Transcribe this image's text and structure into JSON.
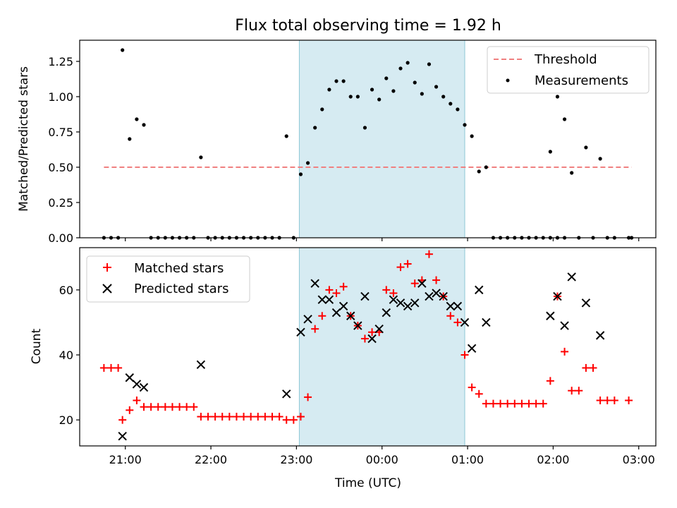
{
  "chart_data": [
    {
      "type": "scatter",
      "title": "Flux total observing time = 1.92 h",
      "xlabel": "",
      "ylabel": "Matched/Predicted stars",
      "xlim": [
        "20:28",
        "03:12"
      ],
      "ylim": [
        0,
        1.4
      ],
      "yticks": [
        0,
        0.25,
        0.5,
        0.75,
        1.0,
        1.25
      ],
      "ytick_labels": [
        "0.00",
        "0.25",
        "0.50",
        "0.75",
        "1.00",
        "1.25"
      ],
      "shaded_interval": [
        "23:02",
        "00:58"
      ],
      "legend_position": "top-right",
      "threshold": {
        "name": "Threshold",
        "x_range": [
          "20:45",
          "02:55"
        ],
        "y": 0.5,
        "color": "#f08080"
      },
      "series": [
        {
          "name": "Measurements",
          "marker": "dot",
          "color": "#000000",
          "points": [
            [
              "20:45",
              0
            ],
            [
              "20:50",
              0
            ],
            [
              "20:55",
              0
            ],
            [
              "20:58",
              1.33
            ],
            [
              "21:03",
              0.7
            ],
            [
              "21:08",
              0.84
            ],
            [
              "21:13",
              0.8
            ],
            [
              "21:18",
              0
            ],
            [
              "21:23",
              0
            ],
            [
              "21:28",
              0
            ],
            [
              "21:33",
              0
            ],
            [
              "21:38",
              0
            ],
            [
              "21:43",
              0
            ],
            [
              "21:48",
              0
            ],
            [
              "21:53",
              0.57
            ],
            [
              "21:58",
              0
            ],
            [
              "22:03",
              0
            ],
            [
              "22:08",
              0
            ],
            [
              "22:13",
              0
            ],
            [
              "22:18",
              0
            ],
            [
              "22:23",
              0
            ],
            [
              "22:28",
              0
            ],
            [
              "22:33",
              0
            ],
            [
              "22:38",
              0
            ],
            [
              "22:43",
              0
            ],
            [
              "22:48",
              0
            ],
            [
              "22:53",
              0.72
            ],
            [
              "22:58",
              0
            ],
            [
              "23:03",
              0.45
            ],
            [
              "23:08",
              0.53
            ],
            [
              "23:13",
              0.78
            ],
            [
              "23:18",
              0.91
            ],
            [
              "23:23",
              1.05
            ],
            [
              "23:28",
              1.11
            ],
            [
              "23:33",
              1.11
            ],
            [
              "23:38",
              1.0
            ],
            [
              "23:43",
              1.0
            ],
            [
              "23:48",
              0.78
            ],
            [
              "23:53",
              1.05
            ],
            [
              "23:58",
              0.98
            ],
            [
              "00:03",
              1.13
            ],
            [
              "00:08",
              1.04
            ],
            [
              "00:13",
              1.2
            ],
            [
              "00:18",
              1.24
            ],
            [
              "00:23",
              1.1
            ],
            [
              "00:28",
              1.02
            ],
            [
              "00:33",
              1.23
            ],
            [
              "00:38",
              1.07
            ],
            [
              "00:43",
              1.0
            ],
            [
              "00:48",
              0.95
            ],
            [
              "00:53",
              0.91
            ],
            [
              "00:58",
              0.8
            ],
            [
              "01:03",
              0.72
            ],
            [
              "01:08",
              0.47
            ],
            [
              "01:13",
              0.5
            ],
            [
              "01:18",
              0
            ],
            [
              "01:23",
              0
            ],
            [
              "01:28",
              0
            ],
            [
              "01:33",
              0
            ],
            [
              "01:38",
              0
            ],
            [
              "01:43",
              0
            ],
            [
              "01:48",
              0
            ],
            [
              "01:53",
              0
            ],
            [
              "01:58",
              0
            ],
            [
              "02:03",
              0
            ],
            [
              "02:08",
              0
            ],
            [
              "01:58",
              0.61
            ],
            [
              "02:03",
              1.0
            ],
            [
              "02:08",
              0.84
            ],
            [
              "02:13",
              0.46
            ],
            [
              "02:18",
              0
            ],
            [
              "02:23",
              0.64
            ],
            [
              "02:28",
              0
            ],
            [
              "02:33",
              0.56
            ],
            [
              "02:38",
              0
            ],
            [
              "02:43",
              0
            ],
            [
              "02:53",
              0
            ],
            [
              "02:55",
              0
            ]
          ]
        }
      ]
    },
    {
      "type": "scatter",
      "title": "",
      "xlabel": "Time (UTC)",
      "ylabel": "Count",
      "xlim": [
        "20:28",
        "03:12"
      ],
      "ylim": [
        12,
        73
      ],
      "yticks": [
        20,
        40,
        60
      ],
      "ytick_labels": [
        "20",
        "40",
        "60"
      ],
      "xticks": [
        "21:00",
        "22:00",
        "23:00",
        "00:00",
        "01:00",
        "02:00",
        "03:00"
      ],
      "xtick_labels": [
        "21:00",
        "22:00",
        "23:00",
        "00:00",
        "01:00",
        "02:00",
        "03:00"
      ],
      "shaded_interval": [
        "23:02",
        "00:58"
      ],
      "legend_position": "top-left",
      "series": [
        {
          "name": "Matched stars",
          "marker": "plus",
          "color": "#ff0000",
          "points": [
            [
              "20:45",
              36
            ],
            [
              "20:50",
              36
            ],
            [
              "20:55",
              36
            ],
            [
              "20:58",
              20
            ],
            [
              "21:03",
              23
            ],
            [
              "21:08",
              26
            ],
            [
              "21:13",
              24
            ],
            [
              "21:18",
              24
            ],
            [
              "21:23",
              24
            ],
            [
              "21:28",
              24
            ],
            [
              "21:33",
              24
            ],
            [
              "21:38",
              24
            ],
            [
              "21:43",
              24
            ],
            [
              "21:48",
              24
            ],
            [
              "21:53",
              21
            ],
            [
              "21:58",
              21
            ],
            [
              "22:03",
              21
            ],
            [
              "22:08",
              21
            ],
            [
              "22:13",
              21
            ],
            [
              "22:18",
              21
            ],
            [
              "22:23",
              21
            ],
            [
              "22:28",
              21
            ],
            [
              "22:33",
              21
            ],
            [
              "22:38",
              21
            ],
            [
              "22:43",
              21
            ],
            [
              "22:48",
              21
            ],
            [
              "22:53",
              20
            ],
            [
              "22:58",
              20
            ],
            [
              "23:03",
              21
            ],
            [
              "23:08",
              27
            ],
            [
              "23:13",
              48
            ],
            [
              "23:18",
              52
            ],
            [
              "23:23",
              60
            ],
            [
              "23:28",
              59
            ],
            [
              "23:33",
              61
            ],
            [
              "23:38",
              52
            ],
            [
              "23:43",
              49
            ],
            [
              "23:48",
              45
            ],
            [
              "23:53",
              47
            ],
            [
              "23:58",
              47
            ],
            [
              "00:03",
              60
            ],
            [
              "00:08",
              59
            ],
            [
              "00:13",
              67
            ],
            [
              "00:18",
              68
            ],
            [
              "00:23",
              62
            ],
            [
              "00:28",
              63
            ],
            [
              "00:33",
              71
            ],
            [
              "00:38",
              63
            ],
            [
              "00:43",
              58
            ],
            [
              "00:48",
              52
            ],
            [
              "00:53",
              50
            ],
            [
              "00:58",
              40
            ],
            [
              "01:03",
              30
            ],
            [
              "01:08",
              28
            ],
            [
              "01:13",
              25
            ],
            [
              "01:18",
              25
            ],
            [
              "01:23",
              25
            ],
            [
              "01:28",
              25
            ],
            [
              "01:33",
              25
            ],
            [
              "01:38",
              25
            ],
            [
              "01:43",
              25
            ],
            [
              "01:48",
              25
            ],
            [
              "01:53",
              25
            ],
            [
              "01:58",
              32
            ],
            [
              "02:03",
              58
            ],
            [
              "02:08",
              41
            ],
            [
              "02:13",
              29
            ],
            [
              "02:18",
              29
            ],
            [
              "02:23",
              36
            ],
            [
              "02:28",
              36
            ],
            [
              "02:33",
              26
            ],
            [
              "02:38",
              26
            ],
            [
              "02:43",
              26
            ],
            [
              "02:53",
              26
            ]
          ]
        },
        {
          "name": "Predicted stars",
          "marker": "x",
          "color": "#000000",
          "points": [
            [
              "20:58",
              15
            ],
            [
              "21:03",
              33
            ],
            [
              "21:08",
              31
            ],
            [
              "21:13",
              30
            ],
            [
              "21:53",
              37
            ],
            [
              "22:53",
              28
            ],
            [
              "23:03",
              47
            ],
            [
              "23:08",
              51
            ],
            [
              "23:13",
              62
            ],
            [
              "23:18",
              57
            ],
            [
              "23:23",
              57
            ],
            [
              "23:28",
              53
            ],
            [
              "23:33",
              55
            ],
            [
              "23:38",
              52
            ],
            [
              "23:43",
              49
            ],
            [
              "23:48",
              58
            ],
            [
              "23:53",
              45
            ],
            [
              "23:58",
              48
            ],
            [
              "00:03",
              53
            ],
            [
              "00:08",
              57
            ],
            [
              "00:13",
              56
            ],
            [
              "00:18",
              55
            ],
            [
              "00:23",
              56
            ],
            [
              "00:28",
              62
            ],
            [
              "00:33",
              58
            ],
            [
              "00:38",
              59
            ],
            [
              "00:43",
              58
            ],
            [
              "00:48",
              55
            ],
            [
              "00:53",
              55
            ],
            [
              "00:58",
              50
            ],
            [
              "01:03",
              42
            ],
            [
              "01:08",
              60
            ],
            [
              "01:13",
              50
            ],
            [
              "01:58",
              52
            ],
            [
              "02:03",
              58
            ],
            [
              "02:08",
              49
            ],
            [
              "02:13",
              64
            ],
            [
              "02:23",
              56
            ],
            [
              "02:33",
              46
            ]
          ]
        }
      ]
    }
  ]
}
